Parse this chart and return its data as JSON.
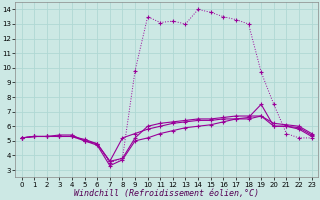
{
  "xlabel": "Windchill (Refroidissement éolien,°C)",
  "bg_color": "#cce8e4",
  "grid_color": "#b0d8d4",
  "line_color": "#990099",
  "xlim": [
    -0.5,
    23.5
  ],
  "ylim": [
    2.5,
    14.5
  ],
  "xticks": [
    0,
    1,
    2,
    3,
    4,
    5,
    6,
    7,
    8,
    9,
    10,
    11,
    12,
    13,
    14,
    15,
    16,
    17,
    18,
    19,
    20,
    21,
    22,
    23
  ],
  "yticks": [
    3,
    4,
    5,
    6,
    7,
    8,
    9,
    10,
    11,
    12,
    13,
    14
  ],
  "series_dotted_x": [
    0,
    1,
    2,
    3,
    4,
    5,
    6,
    7,
    8,
    9,
    10,
    11,
    12,
    13,
    14,
    15,
    16,
    17,
    18,
    19,
    20,
    21,
    22,
    23
  ],
  "series_dotted_y": [
    5.2,
    5.3,
    5.3,
    5.3,
    5.3,
    5.0,
    4.8,
    3.5,
    3.8,
    9.8,
    13.5,
    13.1,
    13.2,
    13.0,
    14.0,
    13.8,
    13.5,
    13.3,
    13.0,
    9.7,
    7.5,
    5.5,
    5.2,
    5.2
  ],
  "series_solid1_x": [
    0,
    1,
    2,
    3,
    4,
    5,
    6,
    7,
    8,
    9,
    10,
    11,
    12,
    13,
    14,
    15,
    16,
    17,
    18,
    19,
    20,
    21,
    22,
    23
  ],
  "series_solid1_y": [
    5.2,
    5.3,
    5.3,
    5.4,
    5.4,
    5.0,
    4.7,
    3.3,
    3.7,
    5.0,
    5.2,
    5.5,
    5.7,
    5.9,
    6.0,
    6.1,
    6.3,
    6.5,
    6.6,
    7.5,
    6.0,
    6.0,
    5.8,
    5.3
  ],
  "series_solid2_x": [
    0,
    1,
    2,
    3,
    4,
    5,
    6,
    7,
    8,
    9,
    10,
    11,
    12,
    13,
    14,
    15,
    16,
    17,
    18,
    19,
    20,
    21,
    22,
    23
  ],
  "series_solid2_y": [
    5.2,
    5.3,
    5.3,
    5.3,
    5.3,
    5.0,
    4.8,
    3.6,
    3.8,
    5.2,
    6.0,
    6.2,
    6.3,
    6.4,
    6.5,
    6.5,
    6.6,
    6.7,
    6.7,
    6.7,
    6.2,
    6.1,
    6.0,
    5.5
  ],
  "series_solid3_x": [
    0,
    1,
    2,
    3,
    4,
    5,
    6,
    7,
    8,
    9,
    10,
    11,
    12,
    13,
    14,
    15,
    16,
    17,
    18,
    19,
    20,
    21,
    22,
    23
  ],
  "series_solid3_y": [
    5.2,
    5.3,
    5.3,
    5.3,
    5.3,
    5.1,
    4.8,
    3.6,
    5.2,
    5.5,
    5.8,
    6.0,
    6.2,
    6.3,
    6.4,
    6.4,
    6.5,
    6.5,
    6.5,
    6.7,
    6.0,
    6.0,
    5.9,
    5.4
  ],
  "font_size_tick": 5.0,
  "font_size_label": 6.0
}
